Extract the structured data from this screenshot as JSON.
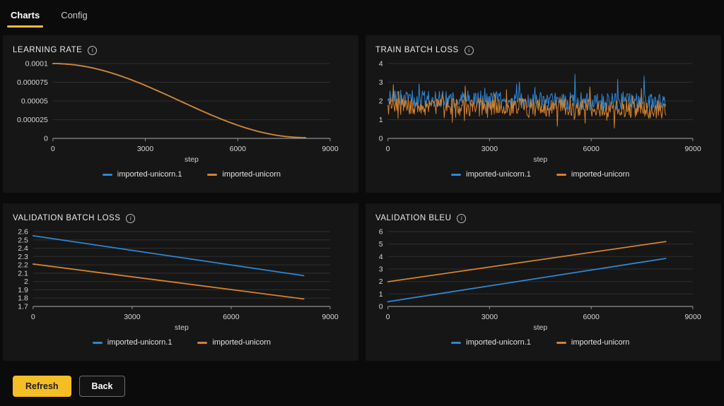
{
  "tabs": [
    {
      "label": "Charts",
      "active": true
    },
    {
      "label": "Config",
      "active": false
    }
  ],
  "colors": {
    "accent": "#f5be25",
    "series_blue": "#2e86d6",
    "series_orange": "#d5822c",
    "page_bg": "#0b0b0b",
    "panel_bg": "#161616",
    "grid": "#2f2f2f",
    "axis": "#909090",
    "tick_text": "#d6d6d6"
  },
  "footer": {
    "refresh_label": "Refresh",
    "back_label": "Back"
  },
  "chart_data": [
    {
      "id": "learning-rate",
      "type": "line",
      "title": "LEARNING RATE",
      "xlabel": "step",
      "xlim": [
        0,
        9000
      ],
      "xticks": [
        0,
        3000,
        6000,
        9000
      ],
      "ylim": [
        0,
        0.0001
      ],
      "yticks": [
        0,
        2.5e-05,
        5e-05,
        7.5e-05,
        0.0001
      ],
      "ytick_labels": [
        "0",
        "0.000025",
        "0.00005",
        "0.000075",
        "0.0001"
      ],
      "grid": true,
      "legend_position": "bottom",
      "series": [
        {
          "name": "imported-unicorn.1",
          "color": "#2e86d6",
          "gen": {
            "kind": "cosine",
            "x_start": 0,
            "x_end": 8200,
            "y_start": 0.0001,
            "y_end": 1e-06
          },
          "note": "cosine decay identical to other run; hidden beneath orange line"
        },
        {
          "name": "imported-unicorn",
          "color": "#d5822c",
          "gen": {
            "kind": "cosine",
            "x_start": 0,
            "x_end": 8200,
            "y_start": 0.0001,
            "y_end": 1e-06
          }
        }
      ]
    },
    {
      "id": "train-batch-loss",
      "type": "line",
      "title": "TRAIN BATCH LOSS",
      "xlabel": "step",
      "xlim": [
        0,
        9000
      ],
      "xticks": [
        0,
        3000,
        6000,
        9000
      ],
      "ylim": [
        0,
        4
      ],
      "yticks": [
        0,
        1,
        2,
        3,
        4
      ],
      "ytick_labels": [
        "0",
        "1",
        "2",
        "3",
        "4"
      ],
      "grid": true,
      "legend_position": "bottom",
      "series": [
        {
          "name": "imported-unicorn.1",
          "color": "#2e86d6",
          "observed_range": [
            1.2,
            3.5
          ],
          "approx_mean": 2.0,
          "gen": {
            "kind": "noise",
            "seed": 7,
            "step": 20,
            "x_start": 0,
            "x_end": 8200,
            "base_start": 2.15,
            "base_end": 1.9,
            "amp": 0.95,
            "spike_prob": 0.06,
            "spike_amp": 1.2,
            "dip_prob": 0.0,
            "dip_amp": 0,
            "min": 1.1,
            "max": 3.5
          }
        },
        {
          "name": "imported-unicorn",
          "color": "#d5822c",
          "observed_range": [
            0.55,
            3.5
          ],
          "approx_mean": 1.65,
          "gen": {
            "kind": "noise",
            "seed": 13,
            "step": 20,
            "x_start": 0,
            "x_end": 8200,
            "base_start": 1.75,
            "base_end": 1.55,
            "amp": 1.0,
            "spike_prob": 0.05,
            "spike_amp": 1.1,
            "dip_prob": 0.05,
            "dip_amp": 0.9,
            "min": 0.55,
            "max": 3.5
          }
        }
      ]
    },
    {
      "id": "validation-batch-loss",
      "type": "line",
      "title": "VALIDATION BATCH LOSS",
      "xlabel": "step",
      "xlim": [
        0,
        9000
      ],
      "xticks": [
        0,
        3000,
        6000,
        9000
      ],
      "ylim": [
        1.7,
        2.6
      ],
      "yticks": [
        1.7,
        1.8,
        1.9,
        2,
        2.1,
        2.2,
        2.3,
        2.4,
        2.5,
        2.6
      ],
      "ytick_labels": [
        "1.7",
        "1.8",
        "1.9",
        "2",
        "2.1",
        "2.2",
        "2.3",
        "2.4",
        "2.5",
        "2.6"
      ],
      "grid": true,
      "legend_position": "bottom",
      "series": [
        {
          "name": "imported-unicorn.1",
          "color": "#2e86d6",
          "gen": {
            "kind": "points",
            "points_xy": [
              [
                0,
                2.55
              ],
              [
                8200,
                2.07
              ]
            ]
          }
        },
        {
          "name": "imported-unicorn",
          "color": "#d5822c",
          "gen": {
            "kind": "points",
            "points_xy": [
              [
                0,
                2.21
              ],
              [
                8200,
                1.79
              ]
            ]
          }
        }
      ]
    },
    {
      "id": "validation-bleu",
      "type": "line",
      "title": "VALIDATION BLEU",
      "xlabel": "step",
      "xlim": [
        0,
        9000
      ],
      "xticks": [
        0,
        3000,
        6000,
        9000
      ],
      "ylim": [
        0,
        6
      ],
      "yticks": [
        0,
        1,
        2,
        3,
        4,
        5,
        6
      ],
      "ytick_labels": [
        "0",
        "1",
        "2",
        "3",
        "4",
        "5",
        "6"
      ],
      "grid": true,
      "legend_position": "bottom",
      "series": [
        {
          "name": "imported-unicorn.1",
          "color": "#2e86d6",
          "gen": {
            "kind": "points",
            "points_xy": [
              [
                0,
                0.38
              ],
              [
                8200,
                3.85
              ]
            ]
          }
        },
        {
          "name": "imported-unicorn",
          "color": "#d5822c",
          "gen": {
            "kind": "points",
            "points_xy": [
              [
                0,
                1.98
              ],
              [
                8200,
                5.2
              ]
            ]
          }
        }
      ]
    }
  ]
}
